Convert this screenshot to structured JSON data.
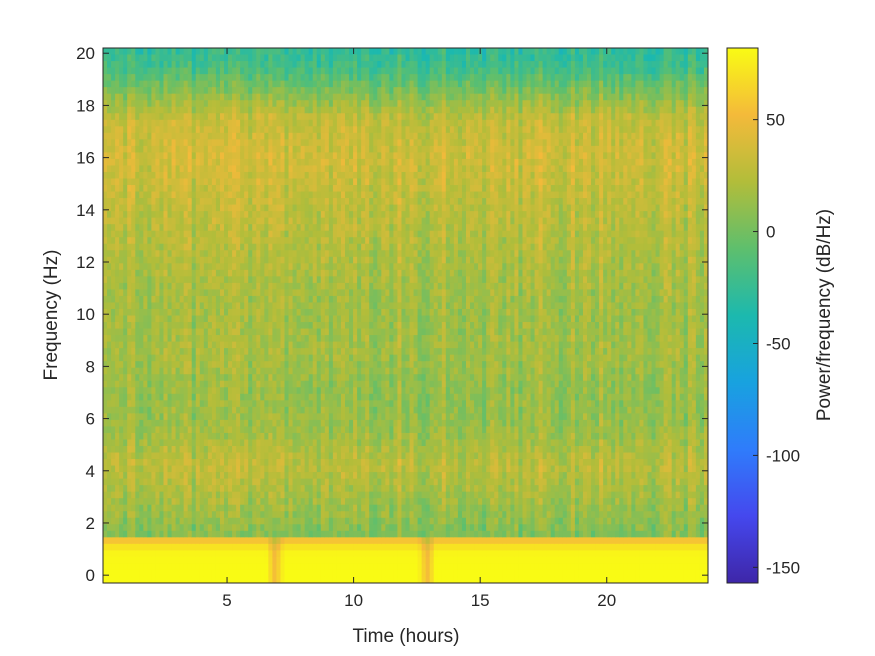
{
  "chart_data": {
    "type": "heatmap",
    "title": "",
    "xlabel": "Time (hours)",
    "ylabel": "Frequency (Hz)",
    "xlim": [
      0.1,
      24
    ],
    "ylim": [
      -0.3,
      20.2
    ],
    "xticks": [
      5,
      10,
      15,
      20
    ],
    "xtick_labels": [
      "5",
      "10",
      "15",
      "20"
    ],
    "yticks": [
      0,
      2,
      4,
      6,
      8,
      10,
      12,
      14,
      16,
      18,
      20
    ],
    "ytick_labels": [
      "0",
      "2",
      "4",
      "6",
      "8",
      "10",
      "12",
      "14",
      "16",
      "18",
      "20"
    ],
    "colorbar": {
      "label": "Power/frequency (dB/Hz)",
      "clim": [
        -157,
        82
      ],
      "ticks": [
        -150,
        -100,
        -50,
        0,
        50
      ],
      "tick_labels": [
        "-150",
        "-100",
        "-50",
        "0",
        "50"
      ],
      "colormap": "parula"
    },
    "frequency_profile": [
      {
        "freq": 0.0,
        "db": 82
      },
      {
        "freq": 0.8,
        "db": 80
      },
      {
        "freq": 1.1,
        "db": 70
      },
      {
        "freq": 1.35,
        "db": 55
      },
      {
        "freq": 1.5,
        "db": 5
      },
      {
        "freq": 2.0,
        "db": 10
      },
      {
        "freq": 3.0,
        "db": 18
      },
      {
        "freq": 4.2,
        "db": 28
      },
      {
        "freq": 5.5,
        "db": 15
      },
      {
        "freq": 7.0,
        "db": 12
      },
      {
        "freq": 8.5,
        "db": 18
      },
      {
        "freq": 10.0,
        "db": 16
      },
      {
        "freq": 12.0,
        "db": 22
      },
      {
        "freq": 14.0,
        "db": 28
      },
      {
        "freq": 16.0,
        "db": 36
      },
      {
        "freq": 17.5,
        "db": 30
      },
      {
        "freq": 18.5,
        "db": 5
      },
      {
        "freq": 19.5,
        "db": -20
      },
      {
        "freq": 20.2,
        "db": -28
      }
    ],
    "time_events": [
      {
        "time": 6.9,
        "description": "dip"
      },
      {
        "time": 12.9,
        "description": "dip"
      }
    ]
  }
}
